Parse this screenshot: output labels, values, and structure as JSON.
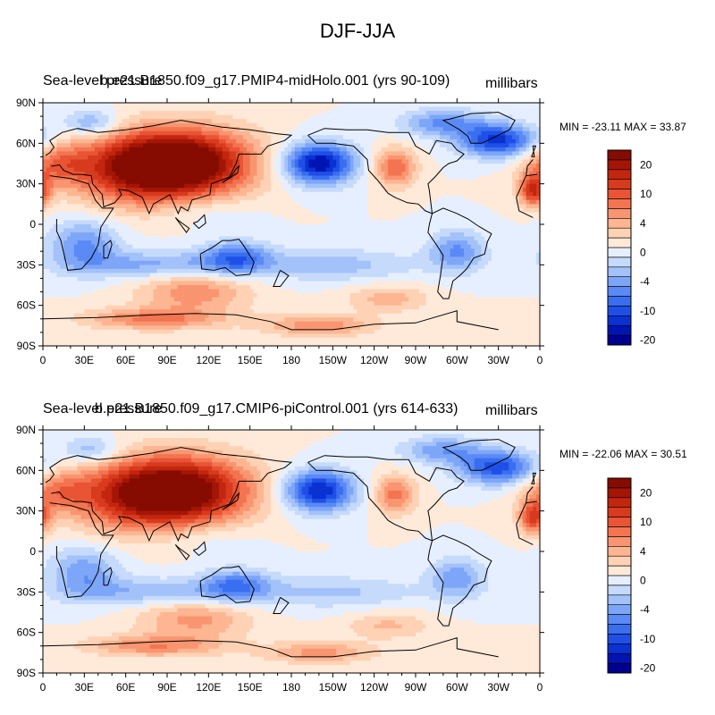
{
  "figure": {
    "title": "DJF-JJA",
    "variable": "Sea-level pressure",
    "units": "millibars"
  },
  "panels": [
    {
      "case": "b.e21.B1850.f09_g17.PMIP4-midHolo.001 (yrs 90-109)",
      "stats": "MIN = -23.11 MAX =  33.87"
    },
    {
      "case": "b.e21.B1850.f09_g17.CMIP6-piControl.001 (yrs 614-633)",
      "stats": "MIN = -22.06 MAX =  30.51"
    }
  ],
  "chart_data": [
    {
      "type": "heatmap",
      "title": "Sea-level pressure",
      "subtitle": "b.e21.B1850.f09_g17.PMIP4-midHolo.001 (yrs 90-109)",
      "units": "millibars",
      "min": -23.11,
      "max": 33.87,
      "xlim": [
        0,
        360
      ],
      "ylim": [
        -90,
        90
      ],
      "x_tick_labels": [
        "0",
        "30E",
        "60E",
        "90E",
        "120E",
        "150E",
        "180",
        "150W",
        "120W",
        "90W",
        "60W",
        "30W",
        "0"
      ],
      "y_tick_labels": [
        "90N",
        "60N",
        "30N",
        "0",
        "30S",
        "60S",
        "90S"
      ],
      "colorbar_levels": [
        -24,
        -22,
        -20,
        -18,
        -16,
        -14,
        -12,
        -10,
        -8,
        -6,
        -4,
        -2,
        0,
        2,
        4,
        6,
        8,
        10,
        12,
        14,
        16,
        18,
        20,
        22,
        24
      ],
      "colorbar_labels": [
        "20",
        "10",
        "4",
        "0",
        "-4",
        "-10",
        "-20"
      ]
    },
    {
      "type": "heatmap",
      "title": "Sea-level pressure",
      "subtitle": "b.e21.B1850.f09_g17.CMIP6-piControl.001 (yrs 614-633)",
      "units": "millibars",
      "min": -22.06,
      "max": 30.51,
      "xlim": [
        0,
        360
      ],
      "ylim": [
        -90,
        90
      ],
      "x_tick_labels": [
        "0",
        "30E",
        "60E",
        "90E",
        "120E",
        "150E",
        "180",
        "150W",
        "120W",
        "90W",
        "60W",
        "30W",
        "0"
      ],
      "y_tick_labels": [
        "90N",
        "60N",
        "30N",
        "0",
        "30S",
        "60S",
        "90S"
      ],
      "colorbar_levels": [
        -24,
        -22,
        -20,
        -18,
        -16,
        -14,
        -12,
        -10,
        -8,
        -6,
        -4,
        -2,
        0,
        2,
        4,
        6,
        8,
        10,
        12,
        14,
        16,
        18,
        20,
        22,
        24
      ],
      "colorbar_labels": [
        "20",
        "10",
        "4",
        "0",
        "-4",
        "-10",
        "-20"
      ]
    }
  ],
  "colors": {
    "palette": [
      "#00008f",
      "#0014b4",
      "#0a32d2",
      "#1f4fe6",
      "#3a6ef0",
      "#5a8af5",
      "#7ea6f8",
      "#a3c2fa",
      "#c6dafc",
      "#e6efff",
      "#ffe9d9",
      "#ffd2b5",
      "#fdb592",
      "#f99570",
      "#f37450",
      "#e85434",
      "#d83a1e",
      "#c2260e",
      "#a31605",
      "#860b00"
    ]
  }
}
